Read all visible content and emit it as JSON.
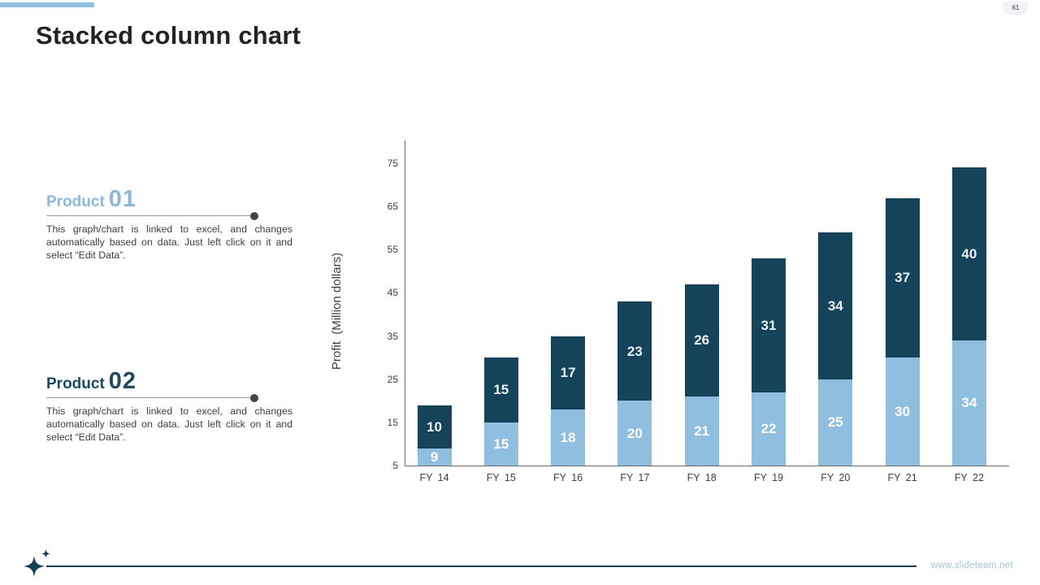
{
  "page": {
    "number": "61"
  },
  "header": {
    "title": "Stacked column chart"
  },
  "theme": {
    "accent_light": "#8fbedf",
    "accent_dark": "#14435a",
    "footer_line": "#123f55",
    "underline_gray": "#9b9b9b",
    "dot_gray": "#454545"
  },
  "products": [
    {
      "label": "Product",
      "number": "01",
      "color": "#8cb9d9",
      "description": "This graph/chart is linked to excel, and changes automatically based on data. Just left click on it and select “Edit Data”."
    },
    {
      "label": "Product",
      "number": "02",
      "color": "#1c4a60",
      "description": "This graph/chart is linked to excel, and changes automatically based on data. Just left click on it and select “Edit Data”."
    }
  ],
  "chart_data": {
    "type": "bar",
    "stacked": true,
    "categories": [
      "FY 14",
      "FY 15",
      "FY 16",
      "FY 17",
      "FY 18",
      "FY 19",
      "FY 20",
      "FY 21",
      "FY 22"
    ],
    "series": [
      {
        "name": "Product 01",
        "color": "#8fbedf",
        "label_color": "#ffffff",
        "values": [
          9,
          15,
          18,
          20,
          21,
          22,
          25,
          30,
          34
        ]
      },
      {
        "name": "Product 02",
        "color": "#14435a",
        "label_color": "#e9eff3",
        "values": [
          10,
          15,
          17,
          23,
          26,
          31,
          34,
          37,
          40
        ]
      }
    ],
    "totals": [
      19,
      30,
      35,
      43,
      47,
      53,
      59,
      67,
      74
    ],
    "ylabel": "Profit  (Million dollars)",
    "ylim": [
      5,
      75
    ],
    "yticks": [
      5,
      15,
      25,
      35,
      45,
      55,
      65,
      75
    ],
    "grid": false,
    "legend": "none"
  },
  "footer": {
    "website": "www.slideteam.net"
  }
}
